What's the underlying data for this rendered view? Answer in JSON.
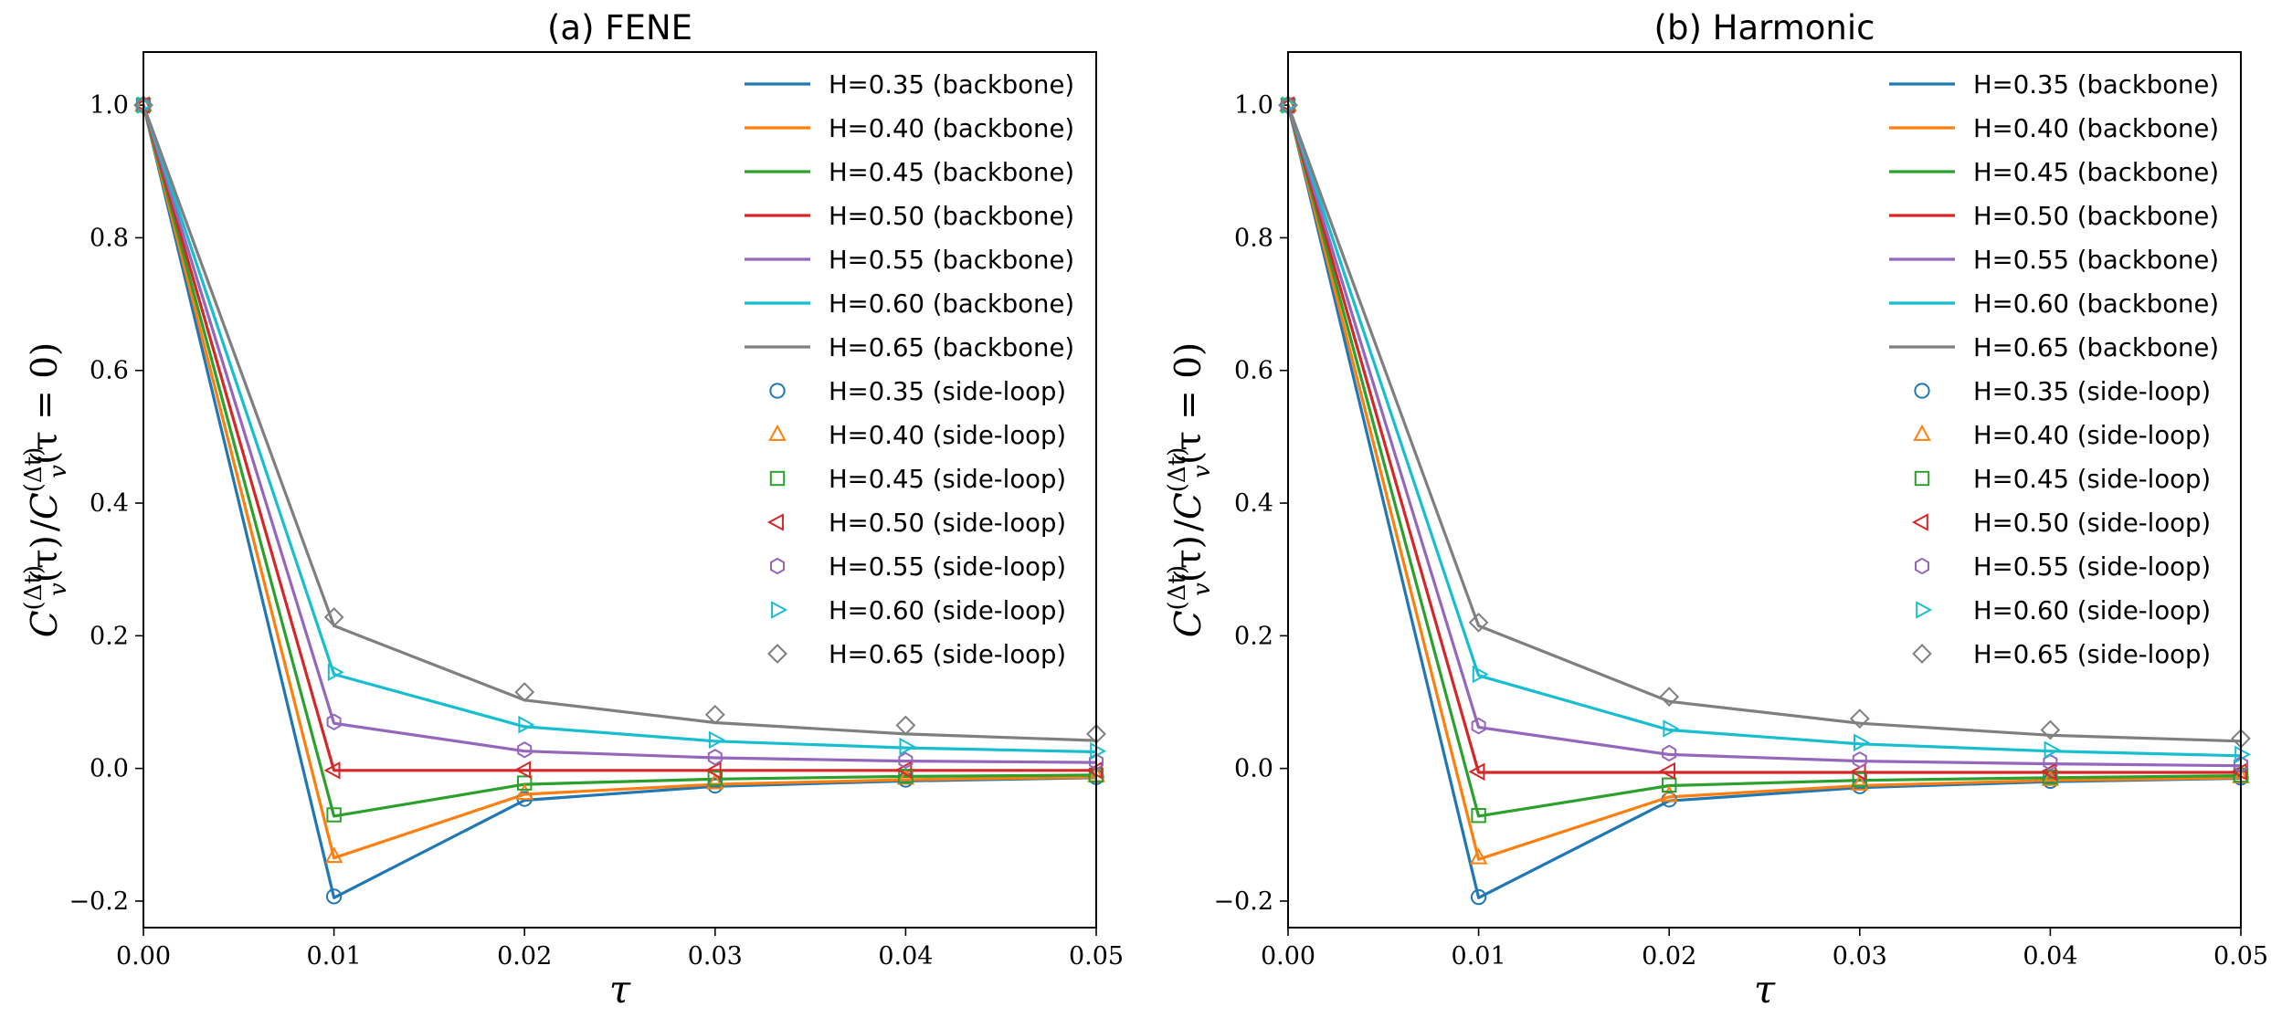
{
  "chart_data": [
    {
      "type": "line",
      "title": "(a) FENE",
      "xlabel": "τ",
      "ylabel": "C_v^(Δt)(τ) / C_v^(Δt)(τ = 0)",
      "ylabel_parts": {
        "c": "C",
        "v": "v",
        "dt": "(Δt)",
        "tau": "(τ)",
        "slash": "/",
        "tail": "(τ = 0)"
      },
      "xlim": [
        0.0,
        0.05
      ],
      "ylim": [
        -0.24,
        1.08
      ],
      "xticks": [
        0.0,
        0.01,
        0.02,
        0.03,
        0.04,
        0.05
      ],
      "xtick_labels": [
        "0.00",
        "0.01",
        "0.02",
        "0.03",
        "0.04",
        "0.05"
      ],
      "yticks": [
        -0.2,
        0.0,
        0.2,
        0.4,
        0.6,
        0.8,
        1.0
      ],
      "ytick_labels": [
        "−0.2",
        "0.0",
        "0.2",
        "0.4",
        "0.6",
        "0.8",
        "1.0"
      ],
      "legend_position": "top-right",
      "x": [
        0.0,
        0.01,
        0.02,
        0.03,
        0.04,
        0.05
      ],
      "series": [
        {
          "name": "H=0.35 (backbone)",
          "kind": "line",
          "color": "#1f77b4",
          "values": [
            1.0,
            -0.195,
            -0.048,
            -0.027,
            -0.019,
            -0.014
          ]
        },
        {
          "name": "H=0.40 (backbone)",
          "kind": "line",
          "color": "#ff7f0e",
          "values": [
            1.0,
            -0.135,
            -0.039,
            -0.024,
            -0.017,
            -0.013
          ]
        },
        {
          "name": "H=0.45 (backbone)",
          "kind": "line",
          "color": "#2ca02c",
          "values": [
            1.0,
            -0.072,
            -0.024,
            -0.016,
            -0.012,
            -0.01
          ]
        },
        {
          "name": "H=0.50 (backbone)",
          "kind": "line",
          "color": "#d62728",
          "values": [
            1.0,
            -0.003,
            -0.003,
            -0.003,
            -0.003,
            -0.003
          ]
        },
        {
          "name": "H=0.55 (backbone)",
          "kind": "line",
          "color": "#9467bd",
          "values": [
            1.0,
            0.068,
            0.026,
            0.016,
            0.011,
            0.009
          ]
        },
        {
          "name": "H=0.60 (backbone)",
          "kind": "line",
          "color": "#17becf",
          "values": [
            1.0,
            0.142,
            0.063,
            0.041,
            0.031,
            0.025
          ]
        },
        {
          "name": "H=0.65 (backbone)",
          "kind": "line",
          "color": "#7f7f7f",
          "values": [
            1.0,
            0.215,
            0.103,
            0.069,
            0.052,
            0.042
          ]
        },
        {
          "name": "H=0.35 (side-loop)",
          "kind": "marker",
          "marker": "circle",
          "color": "#1f77b4",
          "values": [
            1.0,
            -0.193,
            -0.046,
            -0.026,
            -0.017,
            -0.013
          ]
        },
        {
          "name": "H=0.40 (side-loop)",
          "kind": "marker",
          "marker": "triangle-up",
          "color": "#ff7f0e",
          "values": [
            1.0,
            -0.133,
            -0.038,
            -0.022,
            -0.015,
            -0.011
          ]
        },
        {
          "name": "H=0.45 (side-loop)",
          "kind": "marker",
          "marker": "square",
          "color": "#2ca02c",
          "values": [
            1.0,
            -0.07,
            -0.022,
            -0.015,
            -0.012,
            -0.01
          ]
        },
        {
          "name": "H=0.50 (side-loop)",
          "kind": "marker",
          "marker": "triangle-left",
          "color": "#d62728",
          "values": [
            1.0,
            -0.003,
            -0.002,
            -0.003,
            -0.002,
            -0.003
          ]
        },
        {
          "name": "H=0.55 (side-loop)",
          "kind": "marker",
          "marker": "hexagon",
          "color": "#9467bd",
          "values": [
            1.0,
            0.07,
            0.028,
            0.017,
            0.012,
            0.01
          ]
        },
        {
          "name": "H=0.60 (side-loop)",
          "kind": "marker",
          "marker": "triangle-right",
          "color": "#17becf",
          "values": [
            1.0,
            0.145,
            0.066,
            0.043,
            0.033,
            0.026
          ]
        },
        {
          "name": "H=0.65 (side-loop)",
          "kind": "marker",
          "marker": "diamond",
          "color": "#7f7f7f",
          "values": [
            1.0,
            0.228,
            0.115,
            0.081,
            0.065,
            0.052
          ]
        }
      ]
    },
    {
      "type": "line",
      "title": "(b) Harmonic",
      "xlabel": "τ",
      "ylabel": "C_v^(Δt)(τ) / C_v^(Δt)(τ = 0)",
      "ylabel_parts": {
        "c": "C",
        "v": "v",
        "dt": "(Δt)",
        "tau": "(τ)",
        "slash": "/",
        "tail": "(τ = 0)"
      },
      "xlim": [
        0.0,
        0.05
      ],
      "ylim": [
        -0.24,
        1.08
      ],
      "xticks": [
        0.0,
        0.01,
        0.02,
        0.03,
        0.04,
        0.05
      ],
      "xtick_labels": [
        "0.00",
        "0.01",
        "0.02",
        "0.03",
        "0.04",
        "0.05"
      ],
      "yticks": [
        -0.2,
        0.0,
        0.2,
        0.4,
        0.6,
        0.8,
        1.0
      ],
      "ytick_labels": [
        "−0.2",
        "0.0",
        "0.2",
        "0.4",
        "0.6",
        "0.8",
        "1.0"
      ],
      "legend_position": "top-right",
      "x": [
        0.0,
        0.01,
        0.02,
        0.03,
        0.04,
        0.05
      ],
      "series": [
        {
          "name": "H=0.35 (backbone)",
          "kind": "line",
          "color": "#1f77b4",
          "values": [
            1.0,
            -0.195,
            -0.049,
            -0.029,
            -0.02,
            -0.015
          ]
        },
        {
          "name": "H=0.40 (backbone)",
          "kind": "line",
          "color": "#ff7f0e",
          "values": [
            1.0,
            -0.137,
            -0.043,
            -0.026,
            -0.018,
            -0.014
          ]
        },
        {
          "name": "H=0.45 (backbone)",
          "kind": "line",
          "color": "#2ca02c",
          "values": [
            1.0,
            -0.072,
            -0.026,
            -0.018,
            -0.014,
            -0.011
          ]
        },
        {
          "name": "H=0.50 (backbone)",
          "kind": "line",
          "color": "#d62728",
          "values": [
            1.0,
            -0.006,
            -0.006,
            -0.006,
            -0.006,
            -0.006
          ]
        },
        {
          "name": "H=0.55 (backbone)",
          "kind": "line",
          "color": "#9467bd",
          "values": [
            1.0,
            0.062,
            0.021,
            0.011,
            0.007,
            0.004
          ]
        },
        {
          "name": "H=0.60 (backbone)",
          "kind": "line",
          "color": "#17becf",
          "values": [
            1.0,
            0.14,
            0.058,
            0.037,
            0.026,
            0.019
          ]
        },
        {
          "name": "H=0.65 (backbone)",
          "kind": "line",
          "color": "#7f7f7f",
          "values": [
            1.0,
            0.215,
            0.101,
            0.068,
            0.05,
            0.041
          ]
        },
        {
          "name": "H=0.35 (side-loop)",
          "kind": "marker",
          "marker": "circle",
          "color": "#1f77b4",
          "values": [
            1.0,
            -0.194,
            -0.047,
            -0.027,
            -0.019,
            -0.014
          ]
        },
        {
          "name": "H=0.40 (side-loop)",
          "kind": "marker",
          "marker": "triangle-up",
          "color": "#ff7f0e",
          "values": [
            1.0,
            -0.135,
            -0.041,
            -0.024,
            -0.017,
            -0.013
          ]
        },
        {
          "name": "H=0.45 (side-loop)",
          "kind": "marker",
          "marker": "square",
          "color": "#2ca02c",
          "values": [
            1.0,
            -0.071,
            -0.025,
            -0.017,
            -0.013,
            -0.01
          ]
        },
        {
          "name": "H=0.50 (side-loop)",
          "kind": "marker",
          "marker": "triangle-left",
          "color": "#d62728",
          "values": [
            1.0,
            -0.005,
            -0.004,
            -0.005,
            -0.005,
            -0.005
          ]
        },
        {
          "name": "H=0.55 (side-loop)",
          "kind": "marker",
          "marker": "hexagon",
          "color": "#9467bd",
          "values": [
            1.0,
            0.064,
            0.023,
            0.013,
            0.009,
            0.006
          ]
        },
        {
          "name": "H=0.60 (side-loop)",
          "kind": "marker",
          "marker": "triangle-right",
          "color": "#17becf",
          "values": [
            1.0,
            0.142,
            0.06,
            0.039,
            0.028,
            0.021
          ]
        },
        {
          "name": "H=0.65 (side-loop)",
          "kind": "marker",
          "marker": "diamond",
          "color": "#7f7f7f",
          "values": [
            1.0,
            0.22,
            0.108,
            0.075,
            0.058,
            0.045
          ]
        }
      ]
    }
  ]
}
